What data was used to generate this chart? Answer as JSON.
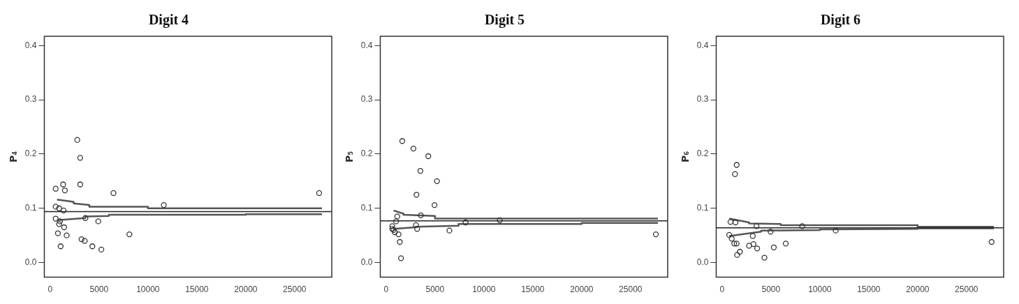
{
  "chart_data": [
    {
      "type": "scatter",
      "title": "Digit 4",
      "ylabel": "P₄",
      "xlim": [
        -600,
        28800
      ],
      "ylim": [
        -0.027,
        0.417
      ],
      "xticks": [
        0,
        5000,
        10000,
        15000,
        20000,
        25000
      ],
      "yticks": [
        {
          "value": 0,
          "label": "0.0"
        },
        {
          "value": 0.1,
          "label": "0.1"
        },
        {
          "value": 0.2,
          "label": "0.2"
        },
        {
          "value": 0.3,
          "label": "0.3"
        },
        {
          "value": 0.4,
          "label": "0.4"
        }
      ],
      "grid": false,
      "legend": false,
      "series": [
        {
          "color": "#333333",
          "marker": "circle",
          "x": [
            2770,
            3070,
            3070,
            560,
            1320,
            1500,
            6470,
            27510,
            11620,
            560,
            910,
            1370,
            560,
            990,
            910,
            1420,
            3600,
            4920,
            790,
            1680,
            8100,
            3200,
            3530,
            1070,
            4310,
            5230
          ],
          "values": [
            0.226,
            0.193,
            0.144,
            0.136,
            0.144,
            0.133,
            0.128,
            0.128,
            0.106,
            0.103,
            0.1,
            0.096,
            0.081,
            0.076,
            0.071,
            0.065,
            0.082,
            0.076,
            0.054,
            0.05,
            0.052,
            0.043,
            0.04,
            0.03,
            0.03,
            0.024
          ]
        },
        {
          "type": "line",
          "color": "#555555",
          "marker": "none",
          "line_style": "solid",
          "x": [
            700,
            2400,
            2400,
            4000,
            4000,
            10000,
            10000,
            27800
          ],
          "values": [
            0.116,
            0.112,
            0.109,
            0.106,
            0.103,
            0.103,
            0.1,
            0.1
          ]
        },
        {
          "type": "line",
          "color": "#555555",
          "marker": "none",
          "line_style": "solid",
          "x": [
            700,
            3600,
            3600,
            6000,
            6000,
            20000,
            20000,
            27800
          ],
          "values": [
            0.078,
            0.082,
            0.085,
            0.086,
            0.088,
            0.088,
            0.089,
            0.089
          ]
        }
      ],
      "ref_lines": [
        {
          "axis": "y",
          "value": 0.094,
          "color": "#222222"
        }
      ]
    },
    {
      "type": "scatter",
      "title": "Digit 5",
      "ylabel": "P₅",
      "xlim": [
        -600,
        28800
      ],
      "ylim": [
        -0.027,
        0.417
      ],
      "xticks": [
        0,
        5000,
        10000,
        15000,
        20000,
        25000
      ],
      "yticks": [
        {
          "value": 0,
          "label": "0.0"
        },
        {
          "value": 0.1,
          "label": "0.1"
        },
        {
          "value": 0.2,
          "label": "0.2"
        },
        {
          "value": 0.3,
          "label": "0.3"
        },
        {
          "value": 0.4,
          "label": "0.4"
        }
      ],
      "grid": false,
      "legend": false,
      "series": [
        {
          "color": "#333333",
          "marker": "circle",
          "x": [
            1650,
            2790,
            4310,
            3500,
            5200,
            3100,
            4950,
            3550,
            3170,
            3050,
            6470,
            8120,
            11620,
            27590,
            1270,
            1400,
            1520,
            630,
            760,
            1020,
            1140,
            890,
            630
          ],
          "values": [
            0.224,
            0.21,
            0.196,
            0.169,
            0.15,
            0.125,
            0.106,
            0.087,
            0.062,
            0.069,
            0.059,
            0.074,
            0.078,
            0.052,
            0.052,
            0.038,
            0.008,
            0.067,
            0.06,
            0.076,
            0.085,
            0.056,
            0.062
          ]
        },
        {
          "type": "line",
          "color": "#555555",
          "marker": "none",
          "line_style": "solid",
          "x": [
            760,
            1780,
            1780,
            5000,
            5000,
            27800
          ],
          "values": [
            0.096,
            0.09,
            0.088,
            0.086,
            0.081,
            0.081
          ]
        },
        {
          "type": "line",
          "color": "#555555",
          "marker": "none",
          "line_style": "solid",
          "x": [
            760,
            3000,
            3000,
            7400,
            7400,
            20000,
            20000,
            27800
          ],
          "values": [
            0.062,
            0.065,
            0.066,
            0.068,
            0.071,
            0.071,
            0.073,
            0.073
          ]
        }
      ],
      "ref_lines": [
        {
          "axis": "y",
          "value": 0.077,
          "color": "#222222"
        }
      ]
    },
    {
      "type": "scatter",
      "title": "Digit 6",
      "ylabel": "P₆",
      "xlim": [
        -600,
        28800
      ],
      "ylim": [
        -0.027,
        0.417
      ],
      "xticks": [
        0,
        5000,
        10000,
        15000,
        20000,
        25000
      ],
      "yticks": [
        {
          "value": 0,
          "label": "0.0"
        },
        {
          "value": 0.1,
          "label": "0.1"
        },
        {
          "value": 0.2,
          "label": "0.2"
        },
        {
          "value": 0.3,
          "label": "0.3"
        },
        {
          "value": 0.4,
          "label": "0.4"
        }
      ],
      "grid": false,
      "legend": false,
      "series": [
        {
          "color": "#333333",
          "marker": "circle",
          "x": [
            1490,
            1320,
            860,
            1370,
            8200,
            11620,
            4960,
            3520,
            3140,
            730,
            990,
            1240,
            1490,
            2760,
            3210,
            3590,
            5290,
            6510,
            1820,
            1540,
            4330,
            27570
          ],
          "values": [
            0.18,
            0.163,
            0.075,
            0.074,
            0.067,
            0.059,
            0.057,
            0.067,
            0.049,
            0.051,
            0.044,
            0.035,
            0.035,
            0.031,
            0.034,
            0.026,
            0.028,
            0.035,
            0.02,
            0.014,
            0.009,
            0.038
          ]
        },
        {
          "type": "line",
          "color": "#555555",
          "marker": "none",
          "line_style": "solid",
          "x": [
            730,
            2760,
            2760,
            6000,
            6000,
            20000,
            20000,
            27800
          ],
          "values": [
            0.081,
            0.074,
            0.072,
            0.071,
            0.069,
            0.069,
            0.066,
            0.066
          ]
        },
        {
          "type": "line",
          "color": "#555555",
          "marker": "none",
          "line_style": "solid",
          "x": [
            730,
            4000,
            4000,
            10000,
            10000,
            20000,
            20000,
            27800
          ],
          "values": [
            0.049,
            0.057,
            0.059,
            0.06,
            0.061,
            0.062,
            0.063,
            0.063
          ]
        }
      ],
      "ref_lines": [
        {
          "axis": "y",
          "value": 0.064,
          "color": "#222222"
        }
      ]
    }
  ]
}
